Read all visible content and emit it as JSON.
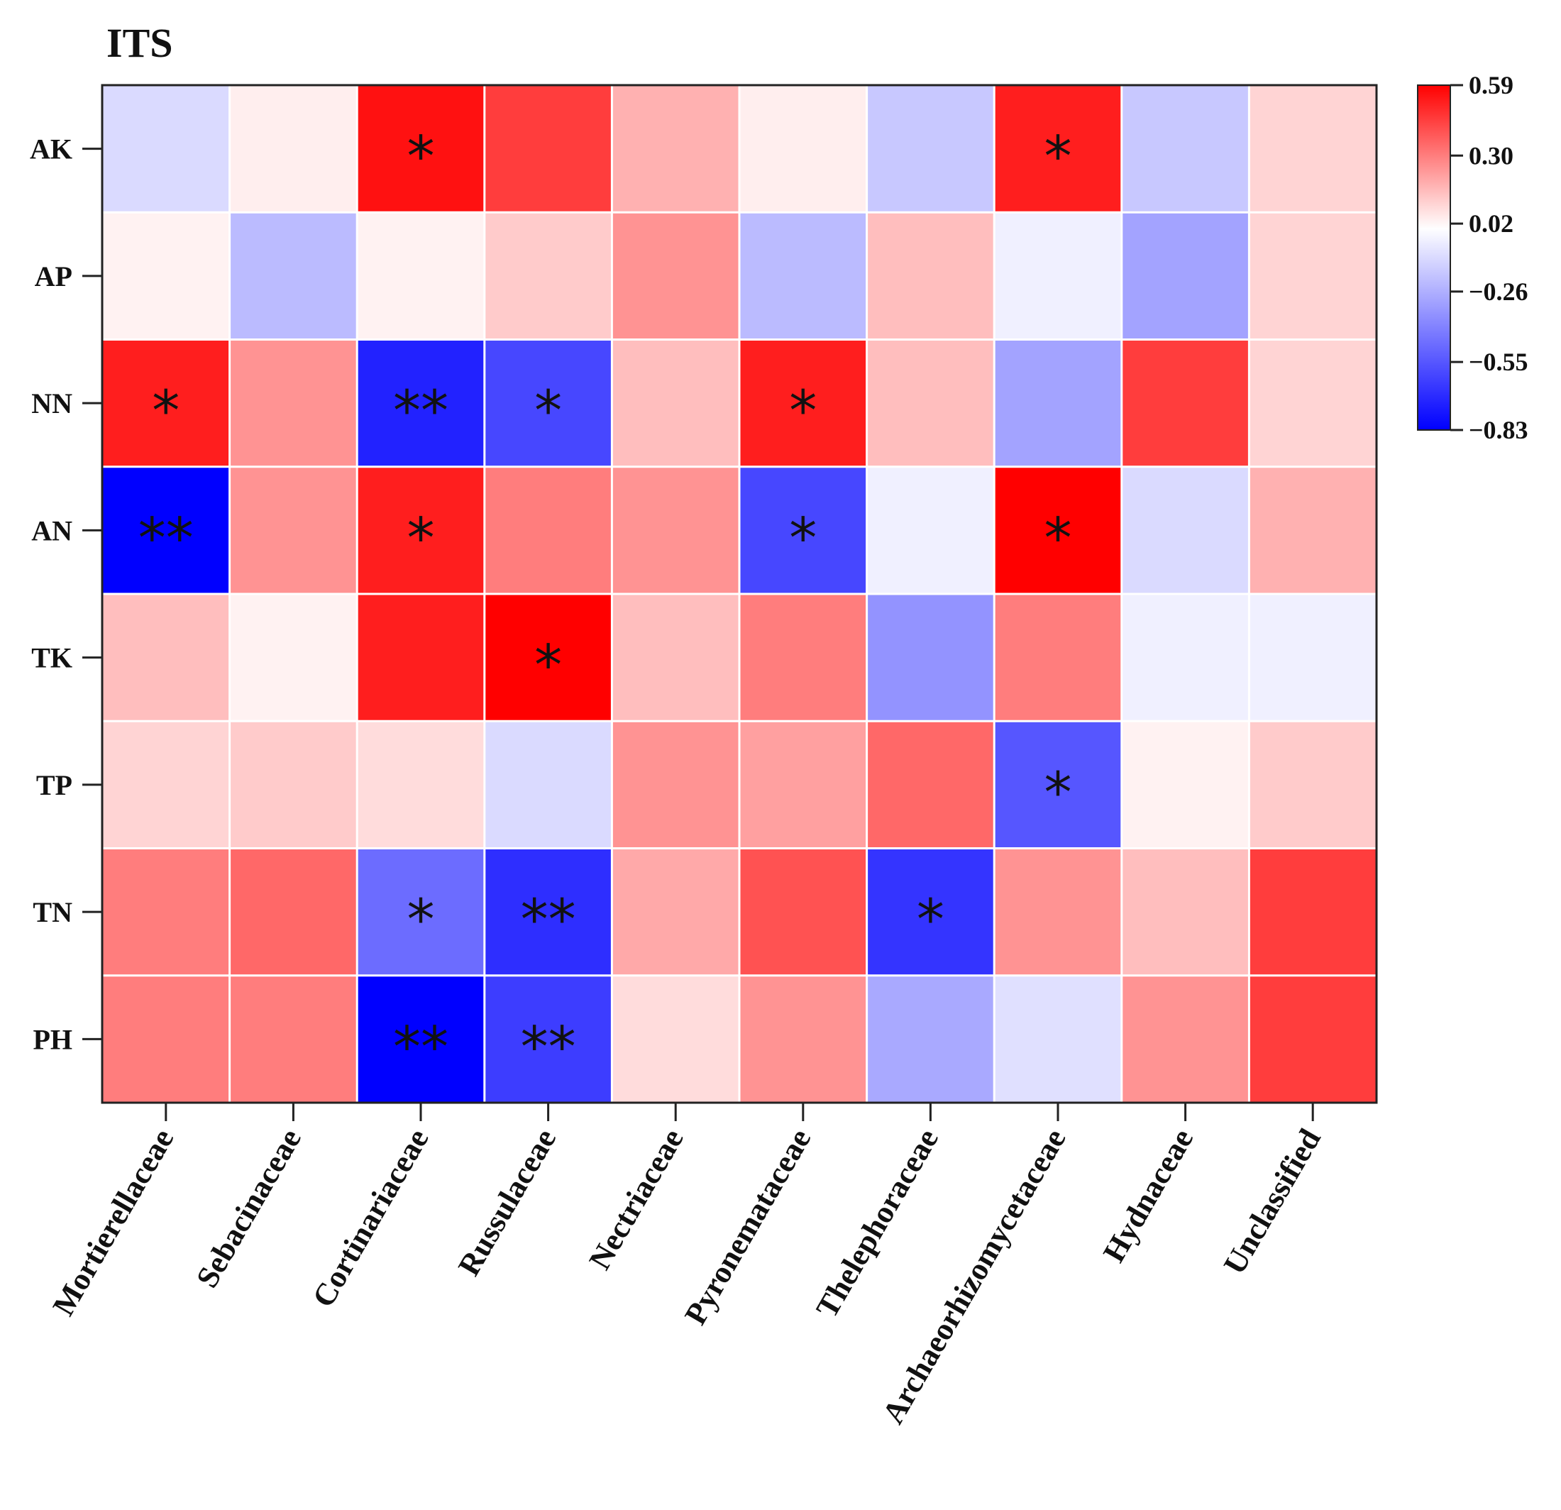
{
  "chart_data": {
    "type": "heatmap",
    "title": "ITS",
    "rows": [
      "AK",
      "AP",
      "NN",
      "AN",
      "TK",
      "TP",
      "TN",
      "PH"
    ],
    "columns": [
      "Mortierellaceae",
      "Sebacinaceae",
      "Cortinariaceae",
      "Russulaceae",
      "Nectriaceae",
      "Pyronemataceae",
      "Thelephoraceae",
      "Archaeorhizomycetaceae",
      "Hydnaceae",
      "Unclassified"
    ],
    "values": [
      [
        -0.12,
        0.04,
        0.55,
        0.45,
        0.18,
        0.04,
        -0.18,
        0.52,
        -0.18,
        0.1
      ],
      [
        0.03,
        -0.22,
        0.03,
        0.12,
        0.25,
        -0.22,
        0.15,
        -0.05,
        -0.3,
        0.1
      ],
      [
        0.52,
        0.25,
        -0.72,
        -0.6,
        0.15,
        0.52,
        0.15,
        -0.3,
        0.45,
        0.1
      ],
      [
        -0.83,
        0.25,
        0.52,
        0.3,
        0.25,
        -0.6,
        -0.05,
        0.59,
        -0.12,
        0.18
      ],
      [
        0.15,
        0.03,
        0.52,
        0.59,
        0.15,
        0.3,
        -0.35,
        0.3,
        -0.05,
        -0.05
      ],
      [
        0.1,
        0.12,
        0.08,
        -0.12,
        0.25,
        0.22,
        0.35,
        -0.55,
        0.03,
        0.12
      ],
      [
        0.3,
        0.35,
        -0.48,
        -0.68,
        0.2,
        0.4,
        -0.66,
        0.25,
        0.15,
        0.45
      ],
      [
        0.3,
        0.3,
        -0.83,
        -0.63,
        0.08,
        0.25,
        -0.28,
        -0.1,
        0.25,
        0.45
      ]
    ],
    "significance": [
      [
        "",
        "",
        "*",
        "",
        "",
        "",
        "",
        "*",
        "",
        ""
      ],
      [
        "",
        "",
        "",
        "",
        "",
        "",
        "",
        "",
        "",
        ""
      ],
      [
        "*",
        "",
        "**",
        "*",
        "",
        "*",
        "",
        "",
        "",
        ""
      ],
      [
        "**",
        "",
        "*",
        "",
        "",
        "*",
        "",
        "*",
        "",
        ""
      ],
      [
        "",
        "",
        "",
        "*",
        "",
        "",
        "",
        "",
        "",
        ""
      ],
      [
        "",
        "",
        "",
        "",
        "",
        "",
        "",
        "*",
        "",
        ""
      ],
      [
        "",
        "",
        "*",
        "**",
        "",
        "",
        "*",
        "",
        "",
        ""
      ],
      [
        "",
        "",
        "**",
        "**",
        "",
        "",
        "",
        "",
        "",
        ""
      ]
    ],
    "colorbar": {
      "min": -0.83,
      "max": 0.59,
      "ticks": [
        "0.59",
        "0.30",
        "0.02",
        "−0.26",
        "−0.55",
        "−0.83"
      ],
      "tick_values": [
        0.59,
        0.3,
        0.02,
        -0.26,
        -0.55,
        -0.83
      ],
      "colors": {
        "low": "#0000ff",
        "mid": "#ffffff",
        "high": "#ff0000"
      },
      "placement": "right"
    }
  }
}
